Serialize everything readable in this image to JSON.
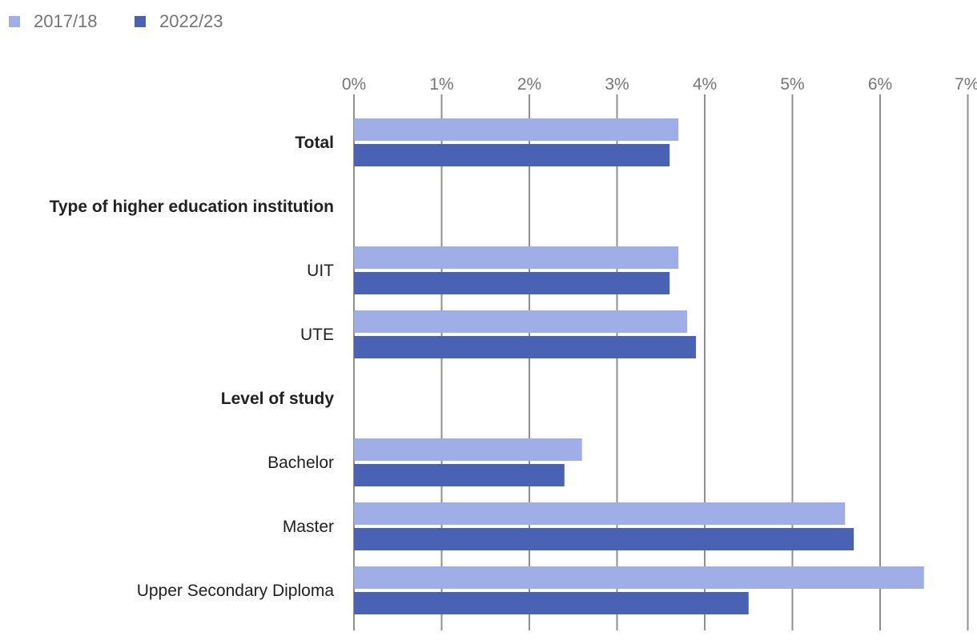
{
  "chart_data": {
    "type": "bar",
    "orientation": "horizontal",
    "categories": [
      {
        "label": "Total",
        "heading": true
      },
      {
        "label": "Type of higher education institution",
        "heading": true
      },
      {
        "label": "UIT",
        "heading": false
      },
      {
        "label": "UTE",
        "heading": false
      },
      {
        "label": "Level of study",
        "heading": true
      },
      {
        "label": "Bachelor",
        "heading": false
      },
      {
        "label": "Master",
        "heading": false
      },
      {
        "label": "Upper Secondary Diploma",
        "heading": false
      }
    ],
    "series": [
      {
        "name": "2017/18",
        "color": "#9faee6",
        "values": [
          3.7,
          null,
          3.7,
          3.8,
          null,
          2.6,
          5.6,
          6.5
        ]
      },
      {
        "name": "2022/23",
        "color": "#4a62b4",
        "values": [
          3.6,
          null,
          3.6,
          3.9,
          null,
          2.4,
          5.7,
          4.5
        ]
      }
    ],
    "x_ticks": [
      "0%",
      "1%",
      "2%",
      "3%",
      "4%",
      "5%",
      "6%",
      "7%"
    ],
    "xlim": [
      0,
      7
    ],
    "title": "",
    "xlabel": "",
    "ylabel": "",
    "grid": true,
    "legend_position": "top-left",
    "x_axis_position": "top"
  }
}
